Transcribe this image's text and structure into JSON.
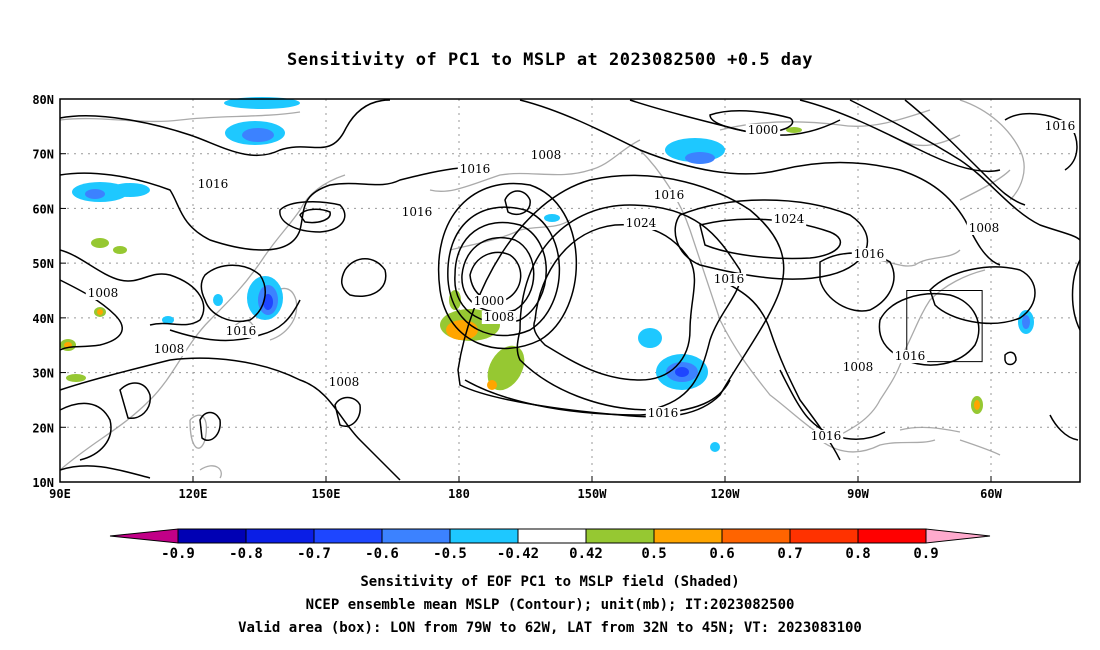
{
  "title": "Sensitivity of PC1 to MSLP at 2023082500 +0.5 day",
  "axes": {
    "lon_labels": [
      "90E",
      "120E",
      "150E",
      "180",
      "150W",
      "120W",
      "90W",
      "60W"
    ],
    "lat_labels": [
      "80N",
      "70N",
      "60N",
      "50N",
      "40N",
      "30N",
      "20N",
      "10N"
    ]
  },
  "contour_labels": [
    "1016",
    "1008",
    "1016",
    "1016",
    "1008",
    "1016",
    "1024",
    "1024",
    "1000",
    "1016",
    "1008",
    "1016",
    "1016",
    "1000",
    "1008",
    "1008",
    "1008",
    "1008",
    "1016",
    "1016",
    "1016",
    "1016"
  ],
  "colorbar": {
    "labels": [
      "-0.9",
      "-0.8",
      "-0.7",
      "-0.6",
      "-0.5",
      "-0.42",
      "0.42",
      "0.5",
      "0.6",
      "0.7",
      "0.8",
      "0.9"
    ],
    "colors": [
      "#c10087",
      "#0000b4",
      "#0a1ee6",
      "#1e46ff",
      "#3c82ff",
      "#1ec8ff",
      "#ffffff",
      "#96c832",
      "#ffa500",
      "#ff6400",
      "#ff3200",
      "#ff0000",
      "#ffaacd"
    ]
  },
  "valid_box": {
    "lon_w": -79,
    "lon_e": -62,
    "lat_s": 32,
    "lat_n": 45
  },
  "captions": {
    "line1": "Sensitivity of EOF PC1 to MSLP field (Shaded)",
    "line2": "NCEP ensemble mean MSLP (Contour); unit(mb); IT:2023082500",
    "line3": "Valid area (box): LON from 79W to 62W, LAT from 32N to 45N; VT: 2023083100"
  }
}
